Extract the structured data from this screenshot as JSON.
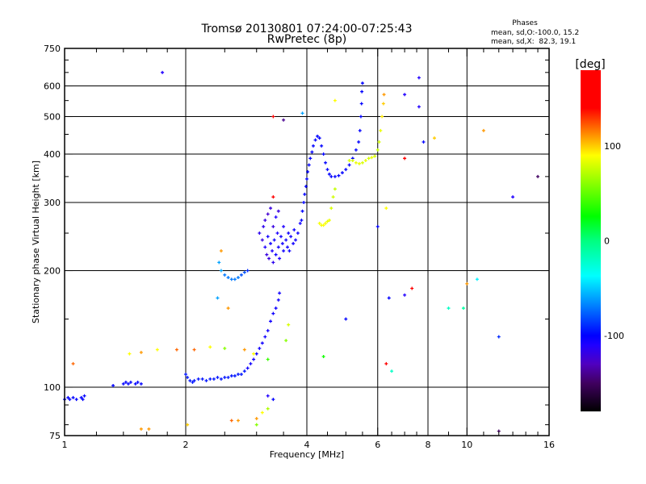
{
  "chart_data": {
    "type": "scatter",
    "title": "Tromsø 20130801 07:24:00-07:25:43",
    "subtitle": "RwPretec (8p)",
    "stats": {
      "heading": "Phases",
      "line_o": "mean, sd,O:-100.0, 15.2",
      "line_x": "mean, sd,X:  82.3, 19.1"
    },
    "xlabel": "Frequency [MHz]",
    "ylabel": "Stationary phase Virtual Height [km]",
    "xscale": "log",
    "yscale": "log",
    "xlim": [
      1,
      16
    ],
    "ylim": [
      75,
      750
    ],
    "xticks": [
      {
        "value": 1,
        "label": "1"
      },
      {
        "value": 2,
        "label": "2"
      },
      {
        "value": 4,
        "label": "4"
      },
      {
        "value": 6,
        "label": "6"
      },
      {
        "value": 8,
        "label": "8"
      },
      {
        "value": 10,
        "label": "10"
      },
      {
        "value": 16,
        "label": "16"
      }
    ],
    "yticks": [
      {
        "value": 75,
        "label": "75"
      },
      {
        "value": 100,
        "label": "100"
      },
      {
        "value": 200,
        "label": "200"
      },
      {
        "value": 300,
        "label": "300"
      },
      {
        "value": 400,
        "label": "400"
      },
      {
        "value": 500,
        "label": "500"
      },
      {
        "value": 600,
        "label": "600"
      },
      {
        "value": 750,
        "label": "750"
      }
    ],
    "grid": true,
    "colorbar": {
      "label": "[deg]",
      "range": [
        -180,
        180
      ],
      "ticks": [
        {
          "value": 100,
          "label": "100"
        },
        {
          "value": 0,
          "label": "0"
        },
        {
          "value": -100,
          "label": "-100"
        }
      ]
    },
    "point_format": [
      "frequency_MHz",
      "height_km",
      "phase_deg"
    ],
    "points": [
      [
        1.0,
        93,
        -100
      ],
      [
        1.02,
        94,
        -100
      ],
      [
        1.03,
        93,
        -100
      ],
      [
        1.05,
        94,
        -100
      ],
      [
        1.07,
        93,
        -100
      ],
      [
        1.1,
        94,
        -100
      ],
      [
        1.12,
        95,
        -100
      ],
      [
        1.11,
        93,
        -100
      ],
      [
        1.32,
        101,
        -100
      ],
      [
        1.4,
        102,
        -100
      ],
      [
        1.42,
        103,
        -100
      ],
      [
        1.44,
        102,
        -100
      ],
      [
        1.46,
        103,
        -100
      ],
      [
        1.5,
        102,
        -100
      ],
      [
        1.52,
        103,
        -100
      ],
      [
        1.55,
        102,
        -100
      ],
      [
        2.0,
        108,
        -95
      ],
      [
        2.02,
        106,
        -95
      ],
      [
        2.05,
        104,
        -95
      ],
      [
        2.08,
        103,
        -95
      ],
      [
        2.1,
        104,
        -95
      ],
      [
        2.15,
        105,
        -95
      ],
      [
        2.2,
        105,
        -95
      ],
      [
        2.25,
        104,
        -95
      ],
      [
        2.3,
        105,
        -95
      ],
      [
        2.35,
        105,
        -95
      ],
      [
        2.4,
        106,
        -95
      ],
      [
        2.45,
        105,
        -95
      ],
      [
        2.5,
        106,
        -95
      ],
      [
        2.55,
        106,
        -95
      ],
      [
        2.6,
        107,
        -95
      ],
      [
        2.65,
        107,
        -95
      ],
      [
        2.7,
        108,
        -95
      ],
      [
        2.75,
        108,
        -95
      ],
      [
        2.8,
        110,
        -95
      ],
      [
        2.85,
        112,
        -105
      ],
      [
        2.9,
        115,
        -105
      ],
      [
        2.95,
        118,
        -105
      ],
      [
        3.0,
        122,
        -105
      ],
      [
        3.05,
        126,
        -105
      ],
      [
        3.1,
        130,
        -105
      ],
      [
        3.15,
        135,
        -105
      ],
      [
        3.2,
        140,
        -105
      ],
      [
        3.25,
        148,
        -105
      ],
      [
        3.3,
        155,
        -105
      ],
      [
        3.35,
        160,
        -105
      ],
      [
        3.4,
        168,
        -105
      ],
      [
        3.42,
        175,
        -105
      ],
      [
        2.42,
        210,
        -60
      ],
      [
        2.45,
        200,
        -60
      ],
      [
        2.5,
        195,
        -70
      ],
      [
        2.55,
        192,
        -70
      ],
      [
        2.6,
        190,
        -70
      ],
      [
        2.65,
        190,
        -70
      ],
      [
        2.7,
        192,
        -70
      ],
      [
        2.75,
        195,
        -80
      ],
      [
        2.8,
        198,
        -80
      ],
      [
        2.85,
        200,
        -90
      ],
      [
        3.05,
        250,
        -115
      ],
      [
        3.1,
        240,
        -120
      ],
      [
        3.12,
        260,
        -115
      ],
      [
        3.15,
        230,
        -110
      ],
      [
        3.18,
        220,
        -120
      ],
      [
        3.2,
        245,
        -105
      ],
      [
        3.22,
        215,
        -120
      ],
      [
        3.25,
        235,
        -105
      ],
      [
        3.28,
        225,
        -110
      ],
      [
        3.3,
        210,
        -115
      ],
      [
        3.3,
        260,
        -120
      ],
      [
        3.32,
        240,
        -105
      ],
      [
        3.35,
        220,
        -105
      ],
      [
        3.38,
        250,
        -110
      ],
      [
        3.4,
        230,
        -105
      ],
      [
        3.42,
        215,
        -110
      ],
      [
        3.45,
        245,
        -105
      ],
      [
        3.48,
        235,
        -105
      ],
      [
        3.5,
        225,
        -105
      ],
      [
        3.5,
        260,
        -110
      ],
      [
        3.55,
        240,
        -105
      ],
      [
        3.58,
        230,
        -105
      ],
      [
        3.6,
        250,
        -105
      ],
      [
        3.62,
        225,
        -105
      ],
      [
        3.65,
        245,
        -105
      ],
      [
        3.7,
        235,
        -105
      ],
      [
        3.72,
        255,
        -105
      ],
      [
        3.75,
        240,
        -105
      ],
      [
        3.8,
        250,
        -105
      ],
      [
        3.85,
        265,
        -105
      ],
      [
        3.15,
        270,
        -120
      ],
      [
        3.2,
        280,
        -125
      ],
      [
        3.25,
        290,
        -120
      ],
      [
        3.35,
        275,
        -110
      ],
      [
        3.4,
        285,
        -120
      ],
      [
        3.88,
        270,
        -100
      ],
      [
        3.9,
        285,
        -100
      ],
      [
        3.93,
        300,
        -100
      ],
      [
        3.95,
        315,
        -100
      ],
      [
        3.98,
        330,
        -100
      ],
      [
        4.0,
        345,
        -100
      ],
      [
        4.02,
        360,
        -100
      ],
      [
        4.05,
        375,
        -100
      ],
      [
        4.08,
        390,
        -100
      ],
      [
        4.12,
        405,
        -100
      ],
      [
        4.15,
        420,
        -100
      ],
      [
        4.2,
        435,
        -100
      ],
      [
        4.25,
        445,
        -100
      ],
      [
        4.3,
        440,
        -100
      ],
      [
        4.35,
        420,
        -100
      ],
      [
        4.4,
        400,
        -100
      ],
      [
        4.45,
        380,
        -100
      ],
      [
        4.5,
        365,
        -100
      ],
      [
        4.55,
        355,
        -100
      ],
      [
        4.6,
        350,
        -100
      ],
      [
        4.7,
        350,
        -100
      ],
      [
        4.8,
        352,
        -100
      ],
      [
        4.9,
        358,
        -100
      ],
      [
        5.0,
        365,
        -100
      ],
      [
        5.1,
        375,
        -100
      ],
      [
        5.2,
        390,
        -100
      ],
      [
        5.3,
        410,
        -100
      ],
      [
        5.38,
        430,
        -100
      ],
      [
        5.42,
        460,
        -100
      ],
      [
        5.45,
        500,
        -100
      ],
      [
        5.47,
        540,
        -100
      ],
      [
        5.48,
        580,
        -100
      ],
      [
        5.5,
        610,
        -100
      ],
      [
        5.1,
        385,
        80
      ],
      [
        5.2,
        385,
        80
      ],
      [
        5.3,
        380,
        85
      ],
      [
        5.4,
        378,
        85
      ],
      [
        5.5,
        380,
        80
      ],
      [
        5.6,
        385,
        85
      ],
      [
        5.7,
        390,
        80
      ],
      [
        5.8,
        392,
        85
      ],
      [
        5.9,
        395,
        80
      ],
      [
        6.0,
        410,
        75
      ],
      [
        6.05,
        430,
        80
      ],
      [
        6.1,
        460,
        85
      ],
      [
        6.15,
        500,
        95
      ],
      [
        6.2,
        540,
        100
      ],
      [
        6.22,
        570,
        110
      ],
      [
        4.3,
        265,
        88
      ],
      [
        4.35,
        262,
        88
      ],
      [
        4.4,
        262,
        90
      ],
      [
        4.45,
        265,
        88
      ],
      [
        4.5,
        268,
        85
      ],
      [
        4.55,
        270,
        85
      ],
      [
        4.6,
        290,
        80
      ],
      [
        4.65,
        310,
        78
      ],
      [
        4.7,
        325,
        75
      ],
      [
        1.75,
        650,
        -110
      ],
      [
        3.3,
        500,
        140
      ],
      [
        3.5,
        490,
        -140
      ],
      [
        3.9,
        510,
        -60
      ],
      [
        4.7,
        550,
        90
      ],
      [
        7.0,
        570,
        -110
      ],
      [
        7.6,
        630,
        -110
      ],
      [
        7.6,
        530,
        -110
      ],
      [
        7.8,
        430,
        -100
      ],
      [
        7.0,
        390,
        160
      ],
      [
        11.0,
        460,
        110
      ],
      [
        15.0,
        350,
        -150
      ],
      [
        13.0,
        310,
        -110
      ],
      [
        12.0,
        135,
        -90
      ],
      [
        10.0,
        185,
        110
      ],
      [
        10.6,
        190,
        -40
      ],
      [
        9.0,
        160,
        -20
      ],
      [
        9.8,
        160,
        -10
      ],
      [
        7.3,
        180,
        140
      ],
      [
        6.4,
        170,
        -100
      ],
      [
        6.3,
        115,
        140
      ],
      [
        5.0,
        150,
        -100
      ],
      [
        4.4,
        120,
        30
      ],
      [
        3.3,
        310,
        170
      ],
      [
        1.05,
        115,
        120
      ],
      [
        1.55,
        78,
        110
      ],
      [
        1.62,
        78,
        110
      ],
      [
        1.45,
        122,
        90
      ],
      [
        1.55,
        123,
        110
      ],
      [
        1.7,
        125,
        90
      ],
      [
        1.9,
        125,
        120
      ],
      [
        2.1,
        125,
        120
      ],
      [
        2.3,
        127,
        90
      ],
      [
        2.5,
        126,
        60
      ],
      [
        2.8,
        125,
        110
      ],
      [
        2.95,
        122,
        90
      ],
      [
        2.6,
        82,
        120
      ],
      [
        3.0,
        83,
        110
      ],
      [
        3.1,
        86,
        90
      ],
      [
        3.2,
        88,
        70
      ],
      [
        3.0,
        80,
        60
      ],
      [
        3.3,
        93,
        -100
      ],
      [
        3.2,
        95,
        -110
      ],
      [
        8.3,
        440,
        100
      ],
      [
        12.0,
        77,
        -150
      ],
      [
        6.0,
        260,
        -100
      ],
      [
        6.3,
        290,
        90
      ],
      [
        6.5,
        110,
        -20
      ],
      [
        3.6,
        145,
        80
      ],
      [
        3.55,
        132,
        60
      ],
      [
        3.2,
        118,
        40
      ],
      [
        2.02,
        80,
        100
      ],
      [
        2.7,
        82,
        110
      ],
      [
        7.0,
        173,
        -110
      ],
      [
        2.45,
        225,
        110
      ],
      [
        2.4,
        170,
        -60
      ],
      [
        2.55,
        160,
        110
      ]
    ]
  }
}
